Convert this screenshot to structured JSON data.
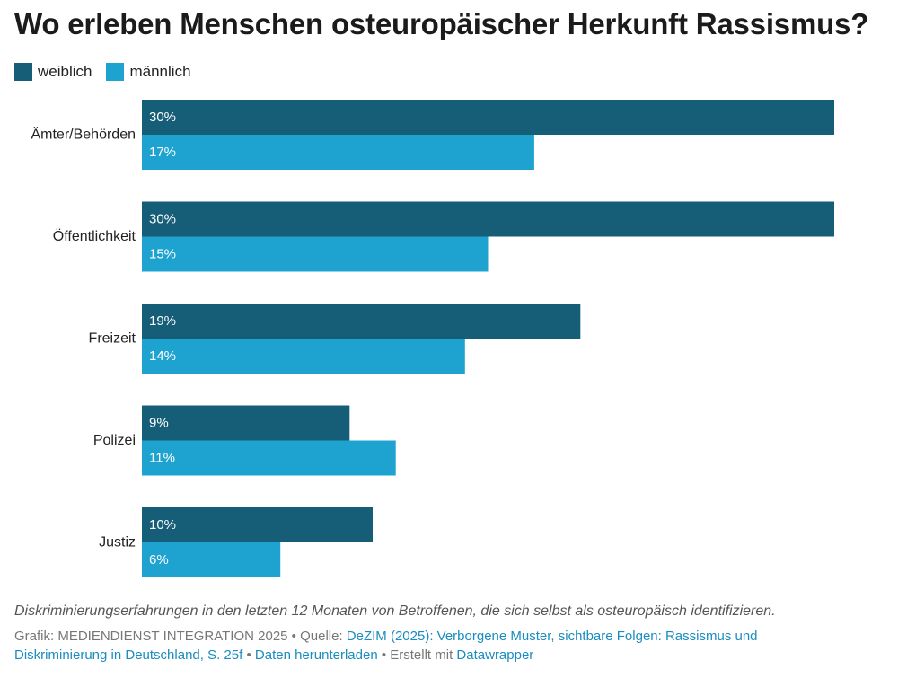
{
  "chart_data": {
    "type": "bar",
    "orientation": "horizontal",
    "title": "Wo erleben Menschen osteuropäischer Herkunft Rassismus?",
    "categories": [
      "Ämter/Behörden",
      "Öffentlichkeit",
      "Freizeit",
      "Polizei",
      "Justiz"
    ],
    "series": [
      {
        "name": "weiblich",
        "values": [
          30,
          30,
          19,
          9,
          10
        ],
        "labels": [
          "30%",
          "30%",
          "19%",
          "9%",
          "10%"
        ]
      },
      {
        "name": "männlich",
        "values": [
          17,
          15,
          14,
          11,
          6
        ],
        "labels": [
          "17%",
          "15%",
          "14%",
          "11%",
          "6%"
        ]
      }
    ],
    "xlim": [
      0,
      30
    ],
    "unit": "%",
    "legend_position": "top-left",
    "grid": false
  },
  "colors": {
    "weiblich": "#165e78",
    "maennlich": "#1ea3d1",
    "link": "#1a8cbf"
  },
  "notes": "Diskriminierungserfahrungen in den letzten 12 Monaten von Betroffenen, die sich selbst als osteuropäisch identifizieren.",
  "footer": {
    "grafik": "Grafik: MEDIENDIENST INTEGRATION 2025",
    "sep1": " • Quelle: ",
    "source_link": "DeZIM (2025): Verborgene Muster, sichtbare Folgen: Rassismus und Diskriminierung in Deutschland, S. 25f",
    "sep2": " • ",
    "download_link": "Daten herunterladen",
    "sep3": " • Erstellt mit ",
    "tool_link": "Datawrapper"
  }
}
